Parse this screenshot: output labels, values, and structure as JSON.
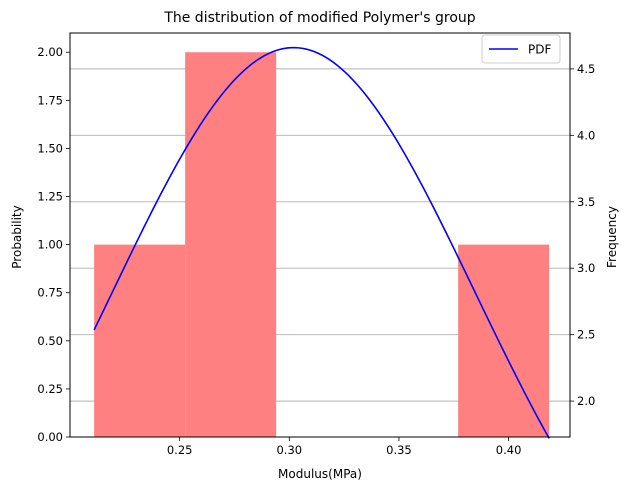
{
  "chart_data": {
    "type": "bar",
    "title": "The distribution of modified Polymer's group",
    "xlabel": "Modulus(MPa)",
    "ylabel": "Probability",
    "ylabel_right": "Frequency",
    "xlim": [
      0.2,
      0.428
    ],
    "ylim": [
      0,
      2.1
    ],
    "ylim_right": [
      1.73,
      4.77
    ],
    "x_ticks": [
      0.25,
      0.3,
      0.35,
      0.4
    ],
    "x_tick_labels": [
      "0.25",
      "0.30",
      "0.35",
      "0.40"
    ],
    "y_ticks": [
      0.0,
      0.25,
      0.5,
      0.75,
      1.0,
      1.25,
      1.5,
      1.75,
      2.0
    ],
    "y_tick_labels": [
      "0.00",
      "0.25",
      "0.50",
      "0.75",
      "1.00",
      "1.25",
      "1.50",
      "1.75",
      "2.00"
    ],
    "y_right_ticks": [
      2.0,
      2.5,
      3.0,
      3.5,
      4.0,
      4.5
    ],
    "y_right_tick_labels": [
      "2.0",
      "2.5",
      "3.0",
      "3.5",
      "4.0",
      "4.5"
    ],
    "grid": "horizontal lines at right-axis ticks",
    "bins": [
      {
        "x0": 0.211,
        "x1": 0.2525,
        "value": 1
      },
      {
        "x0": 0.2525,
        "x1": 0.294,
        "value": 2
      },
      {
        "x0": 0.294,
        "x1": 0.3355,
        "value": 0
      },
      {
        "x0": 0.3355,
        "x1": 0.377,
        "value": 0
      },
      {
        "x0": 0.377,
        "x1": 0.4185,
        "value": 1
      }
    ],
    "bar_color": "#ff8080",
    "series": [
      {
        "name": "PDF",
        "color": "#0000ff",
        "axis": "right",
        "mean": 0.302,
        "std": 0.0825,
        "x_range": [
          0.211,
          0.4185
        ],
        "peak": 4.66
      }
    ],
    "legend_position": "top-right"
  }
}
